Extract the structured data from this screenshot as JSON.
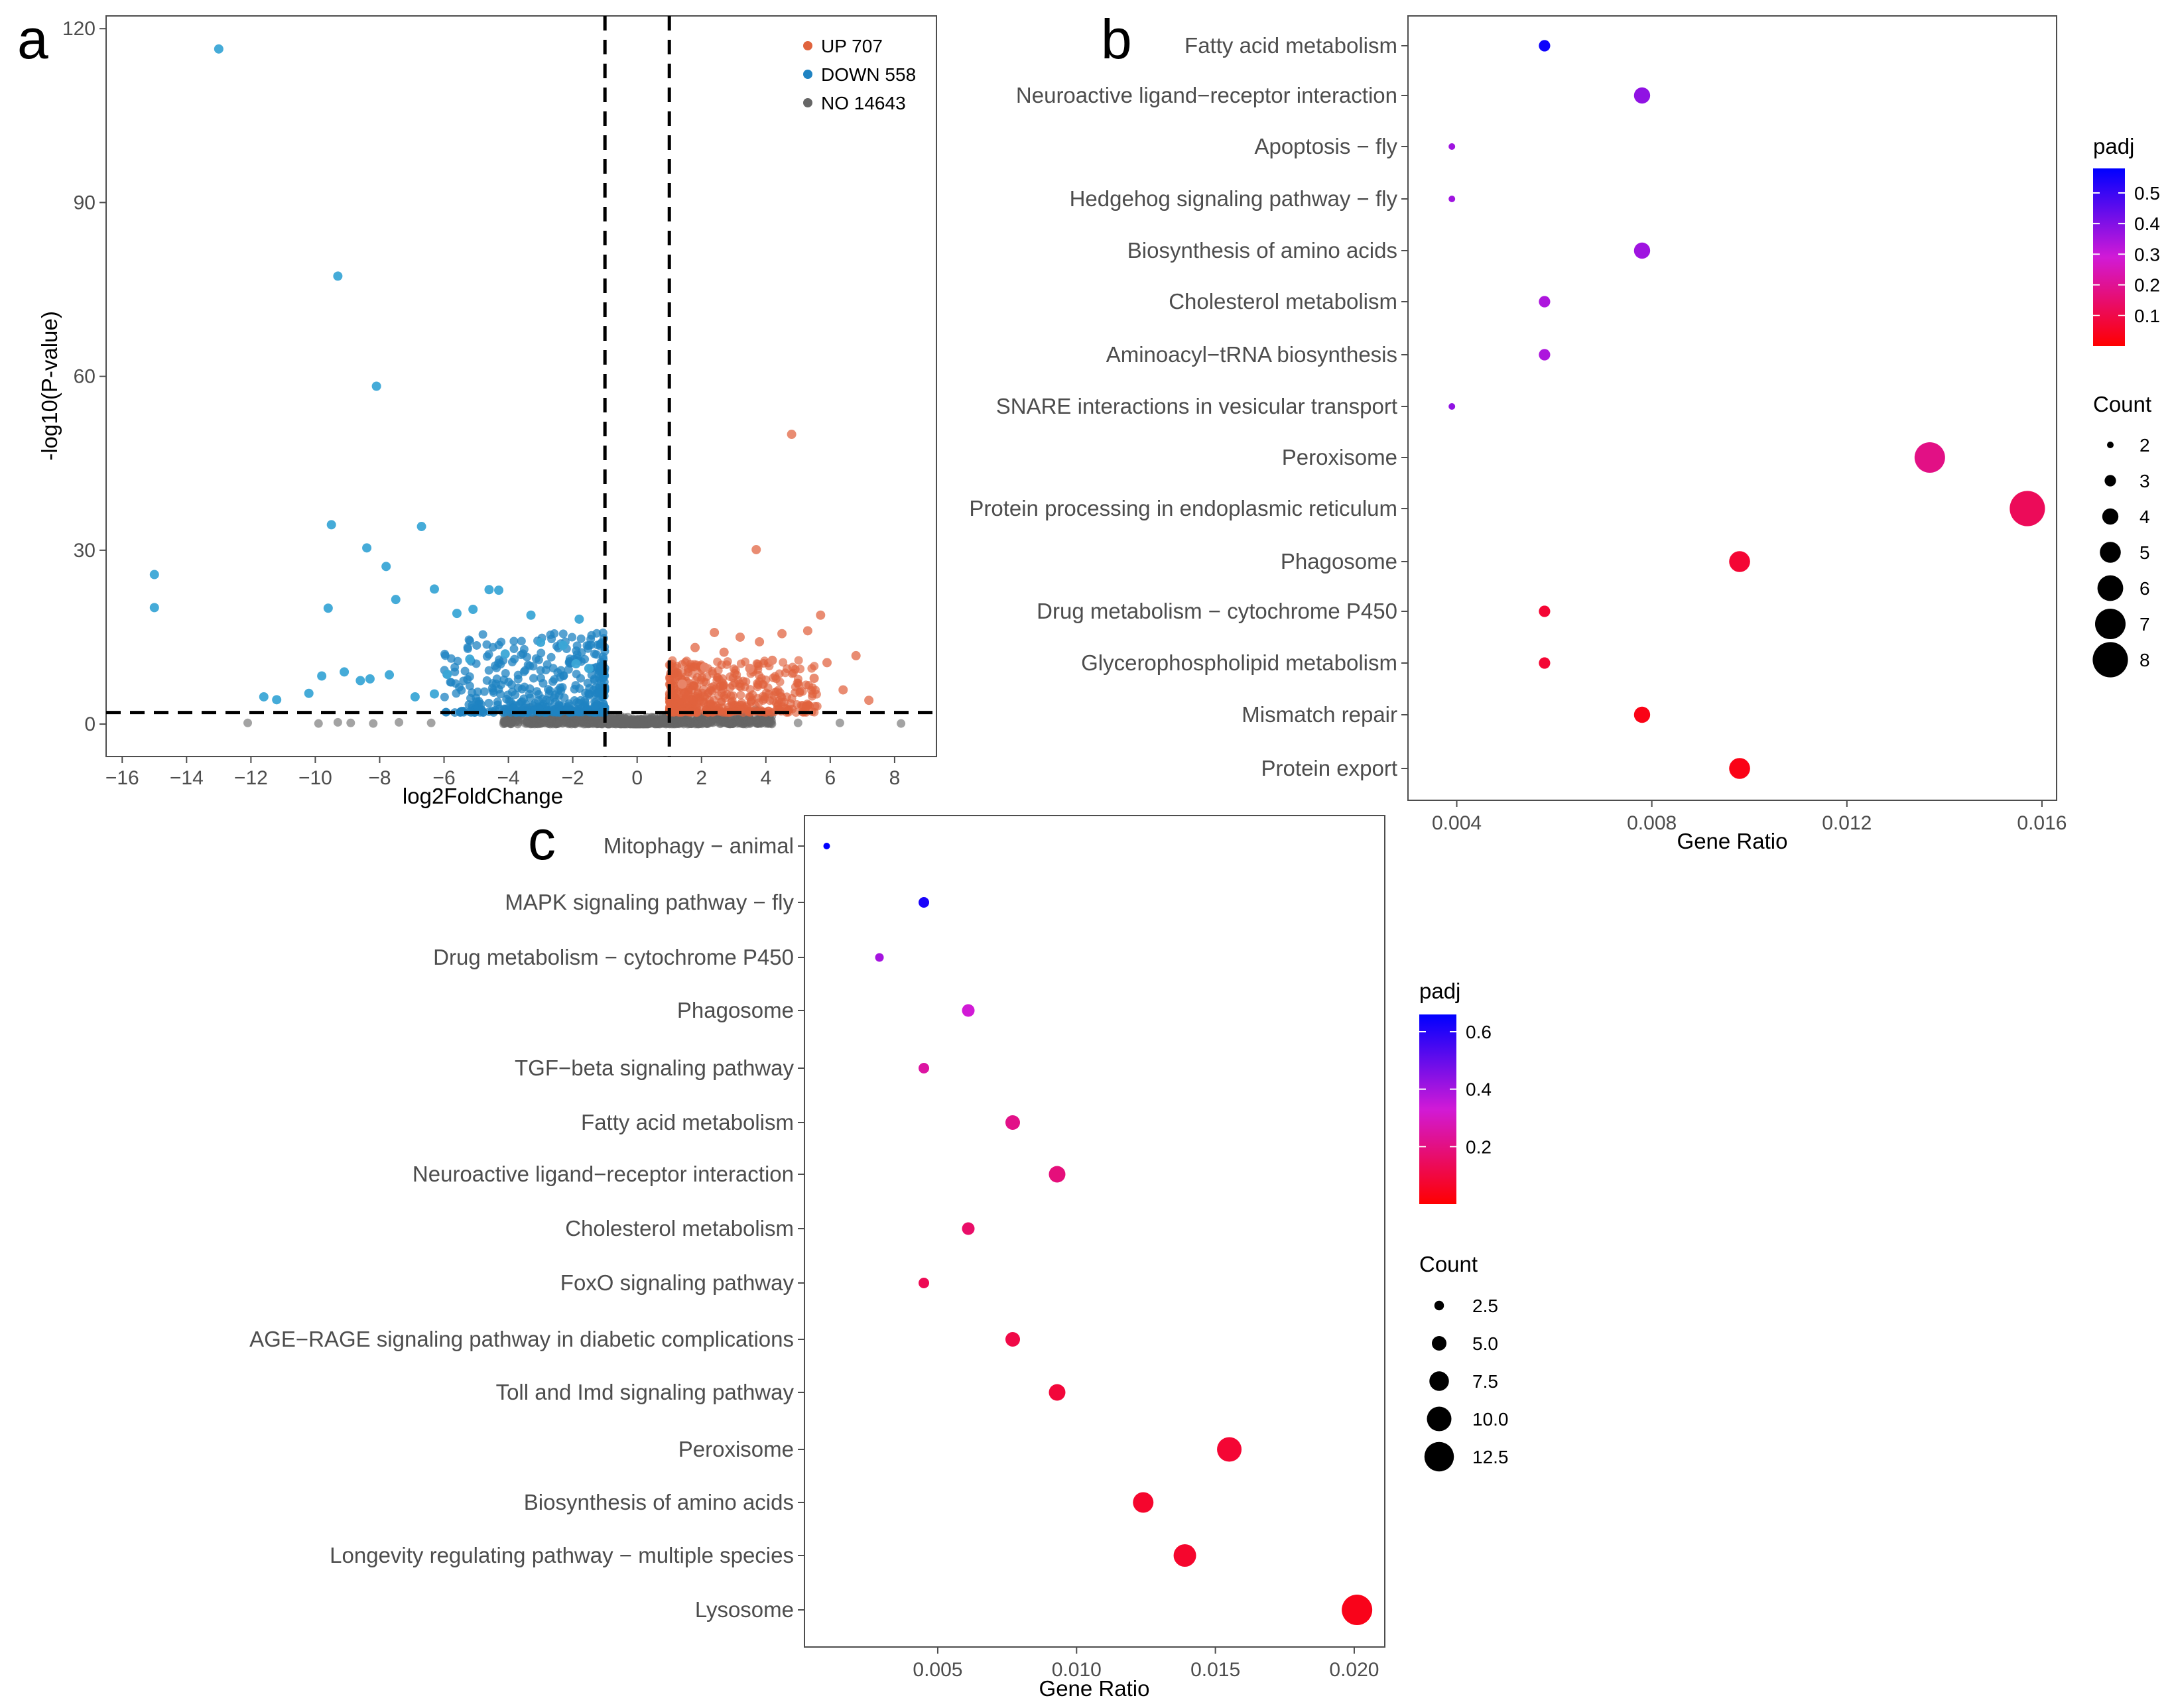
{
  "panels": {
    "a": "a",
    "b": "b",
    "c": "c"
  },
  "chart_data": [
    {
      "id": "a",
      "type": "scatter",
      "subtype": "volcano",
      "xlabel": "log2FoldChange",
      "ylabel": "-log10(P-value)",
      "xlim": [
        -16.5,
        9.3
      ],
      "ylim": [
        -5.6,
        122.2
      ],
      "xticks": [
        -16,
        -14,
        -12,
        -10,
        -8,
        -6,
        -4,
        -2,
        0,
        2,
        4,
        6,
        8
      ],
      "xtick_labels": [
        "−16",
        "−14",
        "−12",
        "−10",
        "−8",
        "−6",
        "−4",
        "−2",
        "0",
        "2",
        "4",
        "6",
        "8"
      ],
      "yticks": [
        0,
        30,
        60,
        90,
        120
      ],
      "ytick_labels": [
        "0",
        "30",
        "60",
        "90",
        "120"
      ],
      "vlines": [
        -1,
        1
      ],
      "hline": 2,
      "legend": [
        {
          "label": "UP 707",
          "color": "#e0633d"
        },
        {
          "label": "DOWN 558",
          "color": "#1f83c2"
        },
        {
          "label": "NO 14643",
          "color": "#666666"
        }
      ],
      "highlighted_points": {
        "down": [
          [
            -13.0,
            116.5
          ],
          [
            -9.3,
            77.3
          ],
          [
            -8.1,
            58.3
          ],
          [
            -15.0,
            25.8
          ],
          [
            -15.0,
            20.1
          ],
          [
            -9.5,
            34.4
          ],
          [
            -6.7,
            34.1
          ],
          [
            -8.4,
            30.4
          ],
          [
            -7.8,
            27.2
          ],
          [
            -9.6,
            20.0
          ],
          [
            -7.5,
            21.5
          ],
          [
            -6.3,
            23.3
          ],
          [
            -5.6,
            19.1
          ],
          [
            -4.6,
            23.2
          ],
          [
            -4.3,
            23.1
          ],
          [
            -5.1,
            19.8
          ],
          [
            -3.3,
            18.8
          ],
          [
            -1.8,
            18.1
          ],
          [
            -11.6,
            4.7
          ],
          [
            -11.2,
            4.2
          ],
          [
            -10.2,
            5.3
          ],
          [
            -9.8,
            8.3
          ],
          [
            -9.1,
            9.0
          ],
          [
            -8.6,
            7.5
          ],
          [
            -8.3,
            7.8
          ],
          [
            -7.7,
            8.5
          ],
          [
            -6.9,
            4.7
          ],
          [
            -6.3,
            5.2
          ],
          [
            -5.9,
            8.6
          ],
          [
            -5.2,
            11.2
          ],
          [
            -4.1,
            12.1
          ],
          [
            -3.0,
            14.1
          ],
          [
            -2.3,
            13.6
          ],
          [
            -1.9,
            10.4
          ],
          [
            -1.5,
            9.6
          ]
        ],
        "up": [
          [
            4.8,
            50.0
          ],
          [
            3.7,
            30.1
          ],
          [
            6.8,
            11.8
          ],
          [
            7.2,
            4.1
          ],
          [
            5.7,
            18.8
          ],
          [
            5.3,
            16.1
          ],
          [
            4.5,
            15.6
          ],
          [
            3.8,
            14.2
          ],
          [
            3.2,
            15.0
          ],
          [
            2.4,
            15.8
          ],
          [
            1.8,
            13.2
          ],
          [
            2.7,
            12.4
          ],
          [
            4.2,
            11.0
          ],
          [
            5.9,
            10.6
          ],
          [
            6.4,
            5.9
          ],
          [
            5.5,
            7.9
          ],
          [
            3.5,
            9.6
          ],
          [
            2.1,
            9.8
          ],
          [
            1.4,
            6.9
          ]
        ]
      },
      "group_ranges": {
        "down": {
          "x": [
            -6.0,
            -1.0
          ],
          "y": [
            2.0,
            16.0
          ],
          "n": 558
        },
        "up": {
          "x": [
            1.0,
            5.6
          ],
          "y": [
            2.0,
            11.0
          ],
          "n": 707
        },
        "no": {
          "x": [
            -12.0,
            8.2
          ],
          "y": [
            0.0,
            2.0
          ],
          "n": 14643
        }
      },
      "no_outliers": [
        [
          -12.1,
          0.2
        ],
        [
          -9.9,
          0.1
        ],
        [
          -8.9,
          0.2
        ],
        [
          -8.2,
          0.1
        ],
        [
          -9.3,
          0.3
        ],
        [
          -7.4,
          0.3
        ],
        [
          -6.4,
          0.2
        ],
        [
          6.3,
          0.2
        ],
        [
          8.2,
          0.1
        ],
        [
          5.0,
          0.2
        ]
      ]
    },
    {
      "id": "b",
      "type": "scatter",
      "subtype": "dotplot",
      "xlabel": "Gene Ratio",
      "xlim": [
        0.003,
        0.0163
      ],
      "xticks": [
        0.004,
        0.008,
        0.012,
        0.016
      ],
      "xtick_labels": [
        "0.004",
        "0.008",
        "0.012",
        "0.016"
      ],
      "categories": [
        "Fatty acid metabolism",
        "Neuroactive ligand−receptor interaction",
        "Apoptosis − fly",
        "Hedgehog signaling pathway − fly",
        "Biosynthesis of amino acids",
        "Cholesterol metabolism",
        "Aminoacyl−tRNA biosynthesis",
        "SNARE interactions in vesicular transport",
        "Peroxisome",
        "Protein processing in endoplasmic reticulum",
        "Phagosome",
        "Drug metabolism − cytochrome P450",
        "Glycerophospholipid metabolism",
        "Mismatch repair",
        "Protein export"
      ],
      "gene_ratio": [
        0.0058,
        0.0078,
        0.0039,
        0.0039,
        0.0078,
        0.0058,
        0.0058,
        0.0039,
        0.0137,
        0.0157,
        0.0098,
        0.0058,
        0.0058,
        0.0078,
        0.0098
      ],
      "count": [
        3,
        4,
        2,
        2,
        4,
        3,
        3,
        2,
        7,
        8,
        5,
        3,
        3,
        4,
        5
      ],
      "padj": [
        0.56,
        0.38,
        0.36,
        0.36,
        0.36,
        0.34,
        0.34,
        0.38,
        0.18,
        0.12,
        0.07,
        0.07,
        0.07,
        0.03,
        0.03
      ],
      "padj_range": [
        0.0,
        0.58
      ],
      "padj_ticks": [
        0.1,
        0.2,
        0.3,
        0.4,
        0.5
      ],
      "padj_tick_labels": [
        "0.1",
        "0.2",
        "0.3",
        "0.4",
        "0.5"
      ],
      "color_legend_title": "padj",
      "size_legend_title": "Count",
      "size_legend_values": [
        2,
        3,
        4,
        5,
        6,
        7,
        8
      ],
      "size_legend_labels": [
        "2",
        "3",
        "4",
        "5",
        "6",
        "7",
        "8"
      ]
    },
    {
      "id": "c",
      "type": "scatter",
      "subtype": "dotplot",
      "xlabel": "Gene Ratio",
      "xlim": [
        0.0002,
        0.0211
      ],
      "xticks": [
        0.005,
        0.01,
        0.015,
        0.02
      ],
      "xtick_labels": [
        "0.005",
        "0.010",
        "0.015",
        "0.020"
      ],
      "categories": [
        "Mitophagy − animal",
        "MAPK signaling pathway − fly",
        "Drug metabolism − cytochrome P450",
        "Phagosome",
        "TGF−beta signaling pathway",
        "Fatty acid metabolism",
        "Neuroactive ligand−receptor interaction",
        "Cholesterol metabolism",
        "FoxO signaling pathway",
        "AGE−RAGE signaling pathway in diabetic complications",
        "Toll and Imd signaling pathway",
        "Peroxisome",
        "Biosynthesis of amino acids",
        "Longevity regulating pathway − multiple species",
        "Lysosome"
      ],
      "gene_ratio": [
        0.001,
        0.0045,
        0.0029,
        0.0061,
        0.0045,
        0.0077,
        0.0093,
        0.0061,
        0.0045,
        0.0077,
        0.0093,
        0.0155,
        0.0124,
        0.0139,
        0.0201
      ],
      "count": [
        1,
        3,
        2,
        4,
        3,
        5,
        6,
        4,
        3,
        5,
        6,
        10,
        8,
        9,
        13
      ],
      "padj": [
        0.66,
        0.62,
        0.4,
        0.33,
        0.25,
        0.21,
        0.19,
        0.16,
        0.13,
        0.11,
        0.09,
        0.08,
        0.07,
        0.07,
        0.04
      ],
      "padj_range": [
        0.0,
        0.66
      ],
      "padj_ticks": [
        0.2,
        0.4,
        0.6
      ],
      "padj_tick_labels": [
        "0.2",
        "0.4",
        "0.6"
      ],
      "color_legend_title": "padj",
      "size_legend_title": "Count",
      "size_legend_values": [
        2.5,
        5.0,
        7.5,
        10.0,
        12.5
      ],
      "size_legend_labels": [
        "2.5",
        "5.0",
        "7.5",
        "10.0",
        "12.5"
      ]
    }
  ]
}
